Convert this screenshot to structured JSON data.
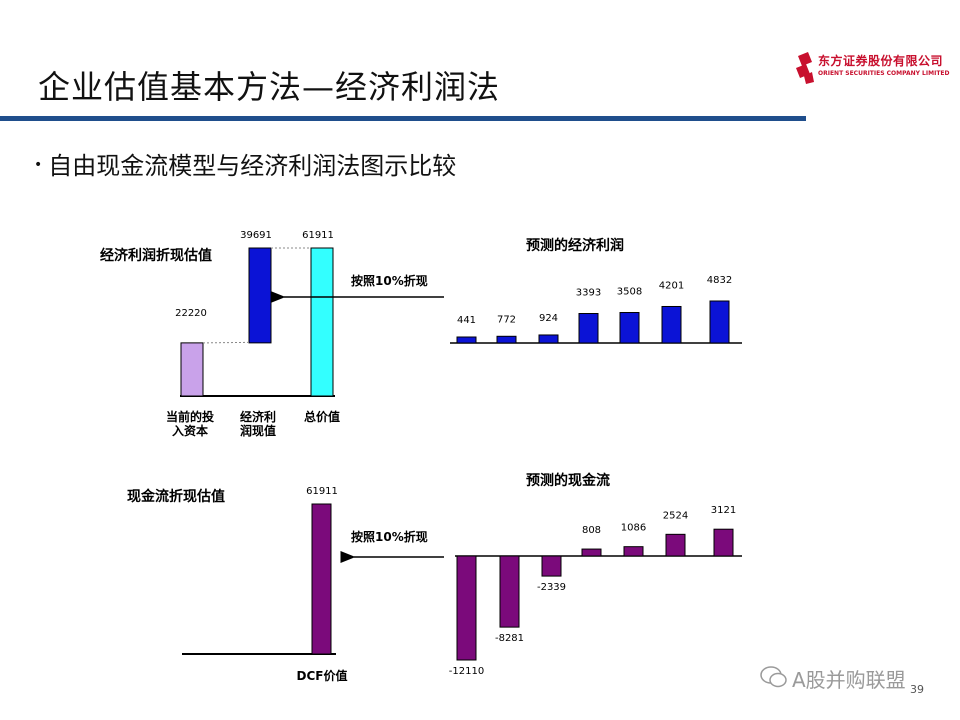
{
  "slide": {
    "title": "企业估值基本方法—经济利润法",
    "bullet": "自由现金流模型与经济利润法图示比较",
    "page_number": "39"
  },
  "logo": {
    "cn": "东方证券股份有限公司",
    "en": "ORIENT SECURITIES COMPANY LIMITED",
    "color": "#c8102e"
  },
  "watermark": "A股并购联盟",
  "chart_data": [
    {
      "type": "bar",
      "subtype": "waterfall",
      "title": "经济利润折现估值",
      "categories": [
        "当前的投入资本",
        "经济利润现值",
        "总价值"
      ],
      "category_lines": [
        [
          "当前的投",
          "入资本"
        ],
        [
          "经济利",
          "润现值"
        ],
        [
          "总价值"
        ]
      ],
      "values": [
        22220,
        39691,
        61911
      ],
      "value_labels": [
        "22220",
        "39691",
        "61911"
      ],
      "colors": [
        "#c9a2ea",
        "#0b13d6",
        "#33ffff"
      ]
    },
    {
      "type": "bar",
      "title": "预测的经济利润",
      "values": [
        441,
        772,
        924,
        3393,
        3508,
        4201,
        4832
      ],
      "value_labels": [
        "441",
        "772",
        "924",
        "3393",
        "3508",
        "4201",
        "4832"
      ],
      "color": "#0b13d6"
    },
    {
      "type": "bar",
      "title": "现金流折现估值",
      "categories": [
        "DCF价值"
      ],
      "values": [
        61911
      ],
      "value_labels": [
        "61911"
      ],
      "color": "#7b0a7b"
    },
    {
      "type": "bar",
      "title": "预测的现金流",
      "values": [
        -12110,
        -8281,
        -2339,
        808,
        1086,
        2524,
        3121
      ],
      "value_labels": [
        "-12110",
        "-8281",
        "-2339",
        "808",
        "1086",
        "2524",
        "3121"
      ],
      "color": "#7b0a7b"
    }
  ],
  "arrows": {
    "top_label": "按照10%折现",
    "bottom_label": "按照10%折现"
  }
}
